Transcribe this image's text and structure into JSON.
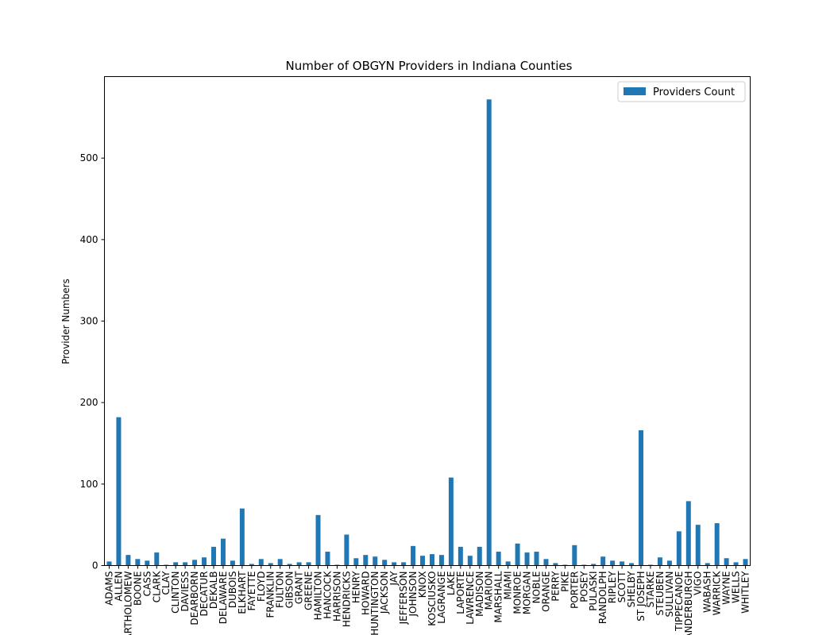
{
  "chart_data": {
    "type": "bar",
    "title": "Number of OBGYN Providers in Indiana Counties",
    "xlabel": "",
    "ylabel": "Provider Numbers",
    "ylim": [
      0,
      600
    ],
    "yticks": [
      0,
      100,
      200,
      300,
      400,
      500
    ],
    "grid": false,
    "legend_position": "top-right",
    "colors": {
      "bar": "#1f77b4"
    },
    "categories": [
      "ADAMS",
      "ALLEN",
      "BARTHOLOMEW",
      "BOONE",
      "CASS",
      "CLARK",
      "CLAY",
      "CLINTON",
      "DAVIESS",
      "DEARBORN",
      "DECATUR",
      "DEKALB",
      "DELAWARE",
      "DUBOIS",
      "ELKHART",
      "FAYETTE",
      "FLOYD",
      "FRANKLIN",
      "FULTON",
      "GIBSON",
      "GRANT",
      "GREENE",
      "HAMILTON",
      "HANCOCK",
      "HARRISON",
      "HENDRICKS",
      "HENRY",
      "HOWARD",
      "HUNTINGTON",
      "JACKSON",
      "JAY",
      "JEFFERSON",
      "JOHNSON",
      "KNOX",
      "KOSCIUSKO",
      "LAGRANGE",
      "LAKE",
      "LAPORTE",
      "LAWRENCE",
      "MADISON",
      "MARION",
      "MARSHALL",
      "MIAMI",
      "MONROE",
      "MORGAN",
      "NOBLE",
      "ORANGE",
      "PERRY",
      "PIKE",
      "PORTER",
      "POSEY",
      "PULASKI",
      "RANDOLPH",
      "RIPLEY",
      "SCOTT",
      "SHELBY",
      "ST JOSEPH",
      "STARKE",
      "STEUBEN",
      "SULLIVAN",
      "TIPPECANOE",
      "VANDERBURGH",
      "VIGO",
      "WABASH",
      "WARRICK",
      "WAYNE",
      "WELLS",
      "WHITLEY"
    ],
    "series": [
      {
        "name": "Providers Count",
        "values": [
          5,
          182,
          13,
          8,
          6,
          16,
          1,
          4,
          4,
          7,
          10,
          23,
          33,
          6,
          70,
          2,
          8,
          3,
          8,
          2,
          4,
          4,
          62,
          17,
          1,
          38,
          9,
          13,
          11,
          7,
          4,
          4,
          24,
          12,
          14,
          13,
          108,
          23,
          12,
          23,
          572,
          17,
          5,
          27,
          16,
          17,
          8,
          3,
          1,
          25,
          1,
          2,
          11,
          6,
          5,
          3,
          166,
          1,
          10,
          6,
          42,
          79,
          50,
          3,
          52,
          9,
          4,
          8
        ]
      }
    ]
  }
}
